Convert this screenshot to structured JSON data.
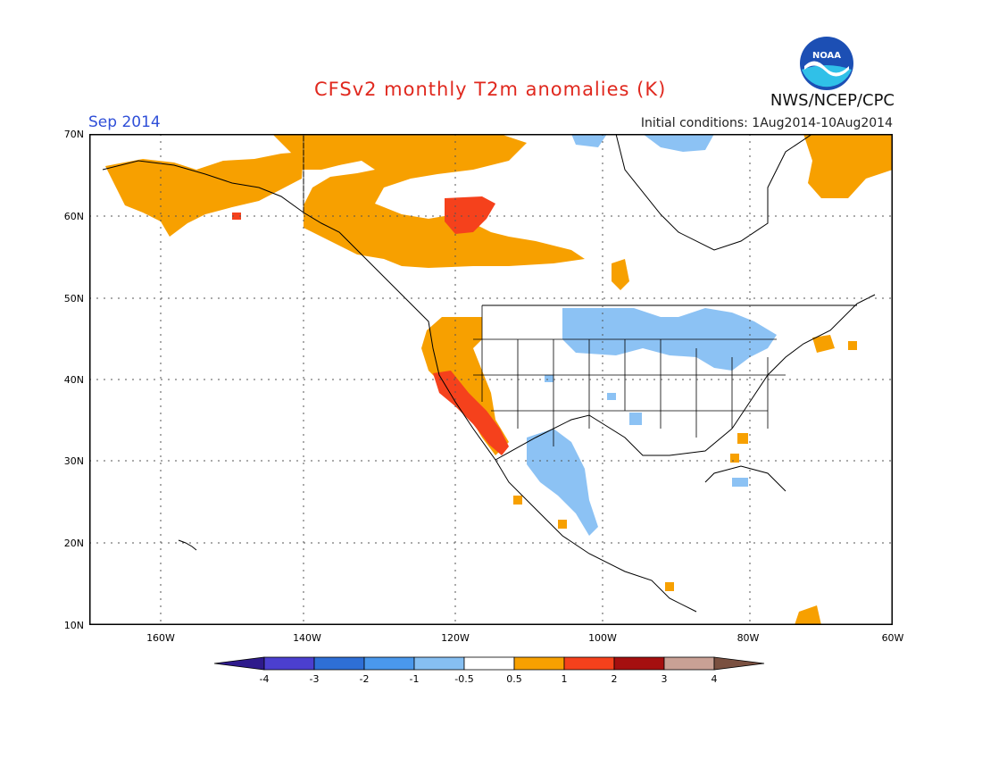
{
  "header": {
    "title": "CFSv2 monthly T2m anomalies (K)",
    "month": "Sep 2014",
    "initial_conditions": "Initial conditions: 1Aug2014-10Aug2014",
    "organization": "NWS/NCEP/CPC",
    "logo_text": "NOAA"
  },
  "axes": {
    "lat_labels": [
      "70N",
      "60N",
      "50N",
      "40N",
      "30N",
      "20N",
      "10N"
    ],
    "lon_labels": [
      "160W",
      "140W",
      "120W",
      "100W",
      "80W",
      "60W"
    ]
  },
  "colorbar": {
    "labels": [
      "-4",
      "-3",
      "-2",
      "-1",
      "-0.5",
      "0.5",
      "1",
      "2",
      "3",
      "4"
    ],
    "colors": [
      "#2e1a8c",
      "#4b3fcf",
      "#2e6fd6",
      "#4a98ec",
      "#86bff2",
      "#ffffff",
      "#f7a000",
      "#f5411c",
      "#a50f0f",
      "#c9a195",
      "#7a5040"
    ]
  },
  "colors": {
    "cold_light": "#8cc2f4",
    "warm_light": "#f7a000",
    "warm_strong": "#f5411c",
    "coastline": "#000000"
  }
}
